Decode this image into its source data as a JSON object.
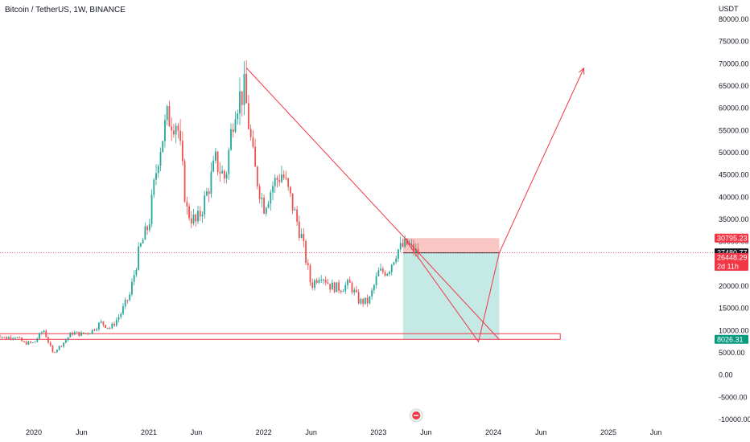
{
  "header": {
    "title": "Bitcoin / TetherUS, 1W, BINANCE"
  },
  "colors": {
    "up": "#26a69a",
    "down": "#ef5350",
    "drawing": "#f23645",
    "short_zone": "#f7b8b5",
    "long_zone": "#b2e3dd",
    "price_line": "#f23645"
  },
  "chart_data": {
    "type": "candlestick",
    "title": "Bitcoin / TetherUS, 1W, BINANCE",
    "currency": "USDT",
    "ylim": [
      -10000,
      80000
    ],
    "yticks": [
      80000,
      75000,
      70000,
      65000,
      60000,
      55000,
      50000,
      45000,
      40000,
      35000,
      30000,
      25000,
      20000,
      15000,
      10000,
      5000,
      0,
      -5000,
      -10000
    ],
    "ytick_labels": [
      "80000.00",
      "75000.00",
      "70000.00",
      "65000.00",
      "60000.00",
      "55000.00",
      "50000.00",
      "45000.00",
      "40000.00",
      "35000.00",
      "30000.00",
      "25000.00",
      "20000.00",
      "15000.00",
      "10000.00",
      "5000.00",
      "0.00",
      "-5000.00",
      "-10000.00"
    ],
    "xticks": [
      "2020",
      "Jun",
      "2021",
      "Jun",
      "2022",
      "Jun",
      "2023",
      "Jun",
      "2024",
      "Jun",
      "2025",
      "Jun"
    ],
    "xtick_dates": [
      "2020-01",
      "2020-06",
      "2021-01",
      "2021-06",
      "2022-01",
      "2022-06",
      "2023-01",
      "2023-06",
      "2024-01",
      "2024-06",
      "2025-01",
      "2025-06"
    ],
    "price_anchors": [
      [
        "2019-09",
        9500
      ],
      [
        "2019-10",
        8300
      ],
      [
        "2019-11",
        8800
      ],
      [
        "2019-12",
        7200
      ],
      [
        "2020-01",
        7200
      ],
      [
        "2020-02",
        10200
      ],
      [
        "2020-03",
        5000
      ],
      [
        "2020-04",
        7000
      ],
      [
        "2020-05",
        9500
      ],
      [
        "2020-06",
        9200
      ],
      [
        "2020-07",
        9800
      ],
      [
        "2020-08",
        11800
      ],
      [
        "2020-09",
        10500
      ],
      [
        "2020-10",
        13500
      ],
      [
        "2020-11",
        18000
      ],
      [
        "2020-12",
        28000
      ],
      [
        "2021-01",
        34000
      ],
      [
        "2021-02",
        50000
      ],
      [
        "2021-03",
        58000
      ],
      [
        "2021-04",
        57000
      ],
      [
        "2021-05",
        37000
      ],
      [
        "2021-06",
        34000
      ],
      [
        "2021-07",
        40000
      ],
      [
        "2021-08",
        48000
      ],
      [
        "2021-09",
        44000
      ],
      [
        "2021-10",
        61000
      ],
      [
        "2021-11",
        64000
      ],
      [
        "2021-12",
        47000
      ],
      [
        "2022-01",
        38000
      ],
      [
        "2022-02",
        43000
      ],
      [
        "2022-03",
        45500
      ],
      [
        "2022-04",
        38500
      ],
      [
        "2022-05",
        31000
      ],
      [
        "2022-06",
        20000
      ],
      [
        "2022-07",
        23000
      ],
      [
        "2022-08",
        20000
      ],
      [
        "2022-09",
        19500
      ],
      [
        "2022-10",
        20500
      ],
      [
        "2022-11",
        16500
      ],
      [
        "2022-12",
        16500
      ],
      [
        "2023-01",
        23000
      ],
      [
        "2023-02",
        23500
      ],
      [
        "2023-03",
        28000
      ],
      [
        "2023-04",
        29500
      ],
      [
        "2023-05",
        27500
      ]
    ],
    "current_price": 27480.77,
    "current_price_label": "27480.77",
    "tags": [
      {
        "label": "30795.23",
        "value": 30795.23,
        "color": "#f23645"
      },
      {
        "label": "27480.77",
        "value": 27480.77,
        "color": "#131722"
      },
      {
        "label": "26448.29",
        "value": 26448.29,
        "color": "#f23645",
        "sub": "2d 11h"
      },
      {
        "label": "8026.31",
        "value": 8026.31,
        "color": "#089981"
      }
    ],
    "drawings": {
      "trendline": {
        "from": [
          "2021-11-08",
          69000
        ],
        "to": [
          "2024-01-20",
          8000
        ]
      },
      "projection_path": [
        [
          "2023-04-01",
          30000
        ],
        [
          "2023-11-15",
          7500
        ],
        [
          "2024-01-20",
          27480
        ],
        [
          "2024-10-15",
          69000
        ]
      ],
      "position": {
        "start": "2023-03-20",
        "end": "2024-01-20",
        "entry": 27480.77,
        "stop": 30795.23,
        "target": 8026.31
      },
      "support_box": {
        "start": "2019-09-01",
        "end": "2024-08-01",
        "top": 9300,
        "bottom": 8026
      }
    }
  }
}
